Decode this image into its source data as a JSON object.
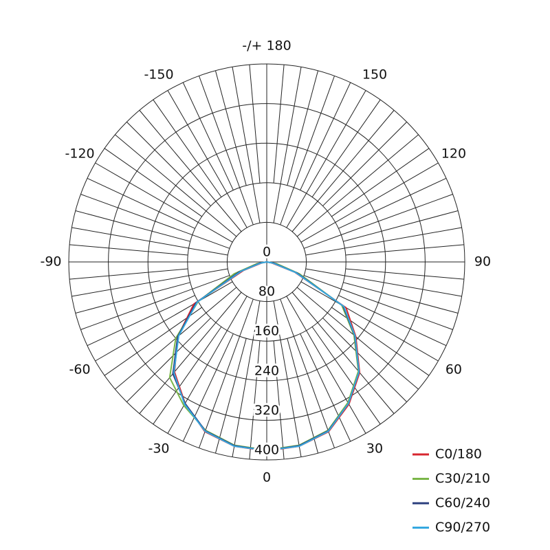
{
  "chart_data": {
    "type": "polar",
    "theta": [
      -90,
      -80,
      -70,
      -60,
      -50,
      -40,
      -30,
      -20,
      -10,
      0,
      10,
      20,
      30,
      40,
      50,
      60,
      70,
      80,
      90
    ],
    "rlim": [
      0,
      400
    ],
    "rticks": [
      0,
      80,
      160,
      240,
      320,
      400
    ],
    "thetaticks": [
      0,
      30,
      60,
      90,
      120,
      150,
      {
        "value": 180,
        "label": "-/+ 180"
      },
      -150,
      -120,
      -90,
      -60,
      -30
    ],
    "legend": "lower right",
    "series": [
      {
        "name": "C0/180",
        "color": "#d7262f",
        "values": [
          0,
          10,
          50,
          170,
          235,
          290,
          330,
          365,
          378,
          382,
          378,
          365,
          332,
          292,
          235,
          185,
          60,
          10,
          0
        ]
      },
      {
        "name": "C30/210",
        "color": "#7ab648",
        "values": [
          0,
          20,
          70,
          160,
          240,
          305,
          335,
          362,
          376,
          380,
          376,
          362,
          328,
          288,
          230,
          175,
          70,
          20,
          0
        ]
      },
      {
        "name": "C60/240",
        "color": "#2b3f7e",
        "values": [
          0,
          15,
          60,
          165,
          235,
          295,
          330,
          363,
          377,
          381,
          377,
          363,
          330,
          290,
          232,
          178,
          65,
          15,
          0
        ]
      },
      {
        "name": "C90/270",
        "color": "#35a8e0",
        "values": [
          0,
          12,
          55,
          162,
          232,
          292,
          332,
          364,
          378,
          381,
          378,
          364,
          330,
          290,
          233,
          180,
          62,
          12,
          0
        ]
      }
    ]
  }
}
